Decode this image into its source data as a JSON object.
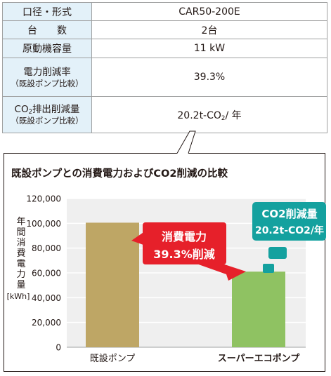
{
  "table": {
    "rows": [
      {
        "label": "口径・形式",
        "value": "CAR50-200E"
      },
      {
        "label": "台　　数",
        "value": "2台"
      },
      {
        "label": "原動機容量",
        "value": "11 kW"
      },
      {
        "label": "電力削減率",
        "label_sub": "（既設ポンプ比較）",
        "value": "39.3%"
      },
      {
        "label_main": "CO",
        "label_sub2": "2",
        "label_main_tail": "排出削減量",
        "label_sub": "（既設ポンプ比較）",
        "value_main": "20.2t-CO",
        "value_sub2": "2",
        "value_tail": "/ 年"
      }
    ]
  },
  "chart_data": {
    "type": "bar",
    "title": "既設ポンプとの消費電力およびCO2削減の比較",
    "ylabel": "年間消費電力量",
    "yunit": "[kWh]",
    "ylim": [
      0,
      120000
    ],
    "yticks": [
      "0",
      "20,000",
      "40,000",
      "60,000",
      "80,000",
      "100,000",
      "120,000"
    ],
    "categories": [
      "既設ポンプ",
      "スーパーエコポンプ"
    ],
    "values": [
      100500,
      61000
    ],
    "colors": {
      "bar1": "#bea665",
      "bar2": "#8fc262",
      "callout_red": "#e6202a",
      "callout_teal": "#14a19f",
      "table_header": "#e3f1f9"
    },
    "annotations": {
      "red_line1": "消費電力",
      "red_line2": "39.3%削減",
      "teal_line1": "CO2削減量",
      "teal_line2": "20.2t-CO2/年"
    }
  }
}
